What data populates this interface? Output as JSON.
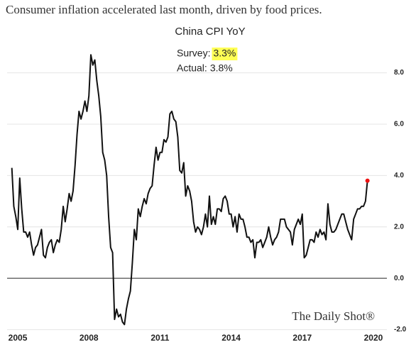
{
  "header": {
    "title": "Consumer inflation accelerated last month, driven by food prices."
  },
  "chart_data": {
    "type": "line",
    "title": "China CPI YoY",
    "annotations": [
      {
        "label": "Survey:",
        "value": "3.3%",
        "highlight": "#ffff55"
      },
      {
        "label": "Actual:",
        "value": "3.8%"
      }
    ],
    "source": "The Daily Shot®",
    "color": "#111111",
    "last_point_color": "#ee1111",
    "grid": true,
    "y_axis_side": "right",
    "x": [
      2004.75,
      2004.833,
      2004.917,
      2005,
      2005.083,
      2005.167,
      2005.25,
      2005.333,
      2005.417,
      2005.5,
      2005.583,
      2005.667,
      2005.75,
      2005.833,
      2005.917,
      2006,
      2006.083,
      2006.167,
      2006.25,
      2006.333,
      2006.417,
      2006.5,
      2006.583,
      2006.667,
      2006.75,
      2006.833,
      2006.917,
      2007,
      2007.083,
      2007.167,
      2007.25,
      2007.333,
      2007.417,
      2007.5,
      2007.583,
      2007.667,
      2007.75,
      2007.833,
      2007.917,
      2008,
      2008.083,
      2008.167,
      2008.25,
      2008.333,
      2008.417,
      2008.5,
      2008.583,
      2008.667,
      2008.75,
      2008.833,
      2008.917,
      2009,
      2009.083,
      2009.167,
      2009.25,
      2009.333,
      2009.417,
      2009.5,
      2009.583,
      2009.667,
      2009.75,
      2009.833,
      2009.917,
      2010,
      2010.083,
      2010.167,
      2010.25,
      2010.333,
      2010.417,
      2010.5,
      2010.583,
      2010.667,
      2010.75,
      2010.833,
      2010.917,
      2011,
      2011.083,
      2011.167,
      2011.25,
      2011.333,
      2011.417,
      2011.5,
      2011.583,
      2011.667,
      2011.75,
      2011.833,
      2011.917,
      2012,
      2012.083,
      2012.167,
      2012.25,
      2012.333,
      2012.417,
      2012.5,
      2012.583,
      2012.667,
      2012.75,
      2012.833,
      2012.917,
      2013,
      2013.083,
      2013.167,
      2013.25,
      2013.333,
      2013.417,
      2013.5,
      2013.583,
      2013.667,
      2013.75,
      2013.833,
      2013.917,
      2014,
      2014.083,
      2014.167,
      2014.25,
      2014.333,
      2014.417,
      2014.5,
      2014.583,
      2014.667,
      2014.75,
      2014.833,
      2014.917,
      2015,
      2015.083,
      2015.167,
      2015.25,
      2015.333,
      2015.417,
      2015.5,
      2015.583,
      2015.667,
      2015.75,
      2015.833,
      2015.917,
      2016,
      2016.083,
      2016.167,
      2016.25,
      2016.333,
      2016.417,
      2016.5,
      2016.583,
      2016.667,
      2016.75,
      2016.833,
      2016.917,
      2017,
      2017.083,
      2017.167,
      2017.25,
      2017.333,
      2017.417,
      2017.5,
      2017.583,
      2017.667,
      2017.75,
      2017.833,
      2017.917,
      2018,
      2018.083,
      2018.167,
      2018.25,
      2018.333,
      2018.417,
      2018.5,
      2018.583,
      2018.667,
      2018.75,
      2018.833,
      2018.917,
      2019,
      2019.083,
      2019.167,
      2019.25,
      2019.333,
      2019.417,
      2019.5,
      2019.583,
      2019.667,
      2019.75
    ],
    "values": [
      4.3,
      2.8,
      2.4,
      1.9,
      3.9,
      2.7,
      1.8,
      1.8,
      1.6,
      1.8,
      1.3,
      0.9,
      1.2,
      1.3,
      1.6,
      1.9,
      0.9,
      0.8,
      1.2,
      1.4,
      1.5,
      1.0,
      1.3,
      1.5,
      1.4,
      1.9,
      2.8,
      2.2,
      2.7,
      3.3,
      3.0,
      3.4,
      4.4,
      5.6,
      6.5,
      6.2,
      6.5,
      6.9,
      6.5,
      7.1,
      8.7,
      8.3,
      8.5,
      7.7,
      7.1,
      6.3,
      4.9,
      4.6,
      4.0,
      2.4,
      1.2,
      1.0,
      -1.6,
      -1.2,
      -1.5,
      -1.4,
      -1.7,
      -1.8,
      -1.2,
      -0.8,
      -0.5,
      0.6,
      1.9,
      1.5,
      2.7,
      2.4,
      2.8,
      3.1,
      2.9,
      3.3,
      3.5,
      3.6,
      4.4,
      5.1,
      4.6,
      4.9,
      4.9,
      5.4,
      5.3,
      5.5,
      6.4,
      6.5,
      6.2,
      6.1,
      5.5,
      4.2,
      4.1,
      4.5,
      3.2,
      3.6,
      3.4,
      3.0,
      2.2,
      1.8,
      2.0,
      1.9,
      1.7,
      2.0,
      2.5,
      2.0,
      3.2,
      2.1,
      2.4,
      2.1,
      2.7,
      2.7,
      2.6,
      3.1,
      3.2,
      3.0,
      2.5,
      2.5,
      2.0,
      2.4,
      1.8,
      2.5,
      2.3,
      2.3,
      2.0,
      1.6,
      1.6,
      1.4,
      1.5,
      0.8,
      1.4,
      1.4,
      1.5,
      1.2,
      1.4,
      1.6,
      2.0,
      1.6,
      1.3,
      1.5,
      1.6,
      1.8,
      2.3,
      2.3,
      2.3,
      2.0,
      1.9,
      1.8,
      1.3,
      1.9,
      2.1,
      2.3,
      2.1,
      2.5,
      0.8,
      0.9,
      1.2,
      1.5,
      1.5,
      1.4,
      1.8,
      1.6,
      1.9,
      1.7,
      1.8,
      1.5,
      2.9,
      2.1,
      1.8,
      1.8,
      1.9,
      2.1,
      2.3,
      2.5,
      2.5,
      2.2,
      1.9,
      1.7,
      1.5,
      2.3,
      2.5,
      2.7,
      2.7,
      2.8,
      2.8,
      3.0,
      3.8
    ],
    "xlim": [
      2004.55,
      2020.57
    ],
    "xticks": [
      2005,
      2008,
      2011,
      2014,
      2017,
      2020
    ],
    "ylim": [
      -2.15,
      8.9
    ],
    "yticks": [
      {
        "value": 8,
        "label": "8.0"
      },
      {
        "value": 6,
        "label": "6.0"
      },
      {
        "value": 4,
        "label": "4.0"
      },
      {
        "value": 2,
        "label": "2.0"
      },
      {
        "value": 0,
        "label": "0.0"
      },
      {
        "value": -2,
        "label": "-2.0"
      }
    ]
  }
}
